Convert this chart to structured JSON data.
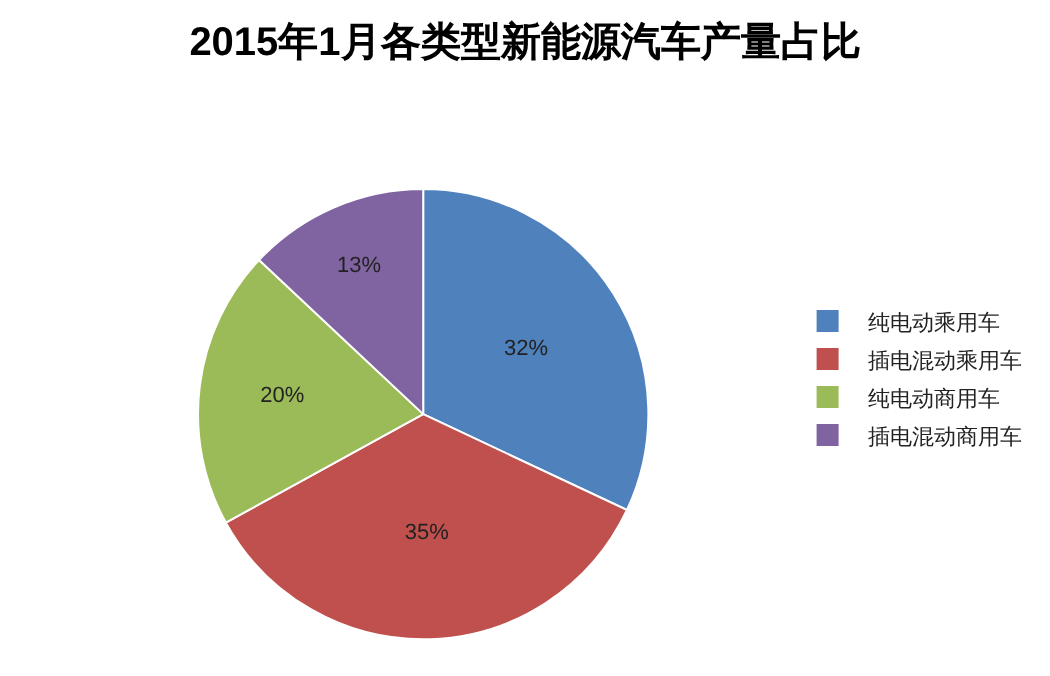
{
  "chart_data": {
    "type": "pie",
    "title": "2015年1月各类型新能源汽车产量占比",
    "categories": [
      "纯电动乘用车",
      "插电混动乘用车",
      "纯电动商用车",
      "插电混动商用车"
    ],
    "values": [
      32,
      35,
      20,
      13
    ],
    "colors": [
      "#4f81bd",
      "#c0504d",
      "#9bbb59",
      "#8064a2"
    ],
    "value_labels": [
      "32%",
      "35%",
      "20%",
      "13%"
    ],
    "legend": "right"
  }
}
